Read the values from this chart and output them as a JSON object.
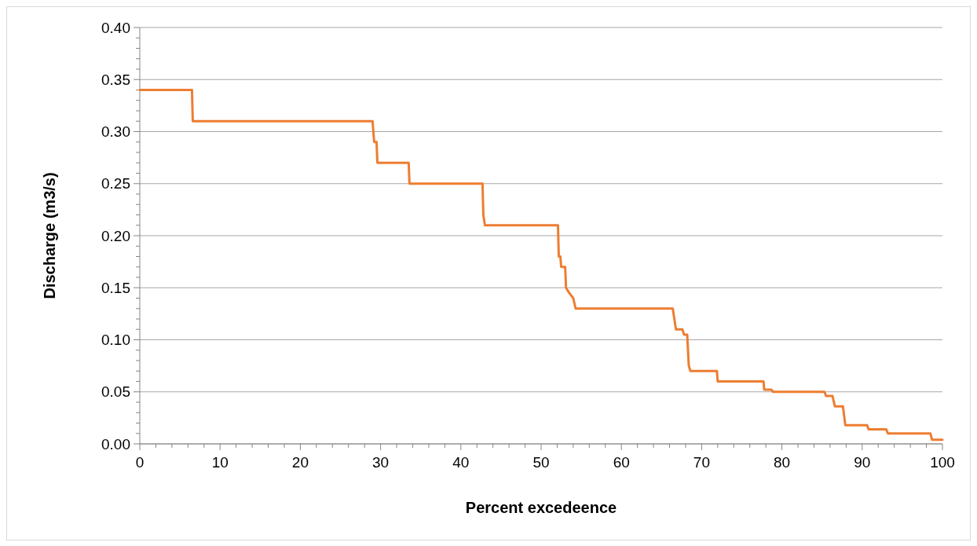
{
  "chart_data": {
    "type": "line",
    "xlabel": "Percent excedeence",
    "ylabel": "Discharge (m3/s)",
    "xlim": [
      0,
      100
    ],
    "xticks": [
      0,
      10,
      20,
      30,
      40,
      50,
      60,
      70,
      80,
      90,
      100
    ],
    "ylim": [
      0,
      0.4
    ],
    "yticks": [
      {
        "value": 0,
        "label": "0.00"
      },
      {
        "value": 0.05,
        "label": "0.05"
      },
      {
        "value": 0.1,
        "label": "0.10"
      },
      {
        "value": 0.15,
        "label": "0.15"
      },
      {
        "value": 0.2,
        "label": "0.20"
      },
      {
        "value": 0.25,
        "label": "0.25"
      },
      {
        "value": 0.3,
        "label": "0.30"
      },
      {
        "value": 0.35,
        "label": "0.35"
      },
      {
        "value": 0.4,
        "label": "0.40"
      }
    ],
    "grid": "y",
    "marker": "none",
    "line_style": "solid",
    "series": [
      {
        "color": "#ed7d31",
        "x": [
          0,
          6.5,
          6.6,
          29,
          29.2,
          29.5,
          29.6,
          33.5,
          33.6,
          42.7,
          42.8,
          43,
          52.1,
          52.2,
          52.4,
          52.5,
          53,
          53.1,
          53.5,
          54,
          54.3,
          66.4,
          66.6,
          66.8,
          67.6,
          67.8,
          68.2,
          68.4,
          68.6,
          71.9,
          72,
          77.7,
          77.8,
          78.7,
          78.9,
          85.3,
          85.5,
          86.3,
          86.6,
          87.6,
          87.9,
          90.6,
          90.8,
          93,
          93.2,
          98.5,
          98.7,
          100
        ],
        "values": [
          0.34,
          0.34,
          0.31,
          0.31,
          0.29,
          0.29,
          0.27,
          0.27,
          0.25,
          0.25,
          0.22,
          0.21,
          0.21,
          0.18,
          0.18,
          0.17,
          0.17,
          0.15,
          0.145,
          0.14,
          0.13,
          0.13,
          0.12,
          0.11,
          0.11,
          0.105,
          0.105,
          0.075,
          0.07,
          0.07,
          0.06,
          0.06,
          0.052,
          0.052,
          0.05,
          0.05,
          0.046,
          0.046,
          0.036,
          0.036,
          0.018,
          0.018,
          0.014,
          0.014,
          0.01,
          0.01,
          0.004,
          0.004
        ]
      }
    ]
  }
}
